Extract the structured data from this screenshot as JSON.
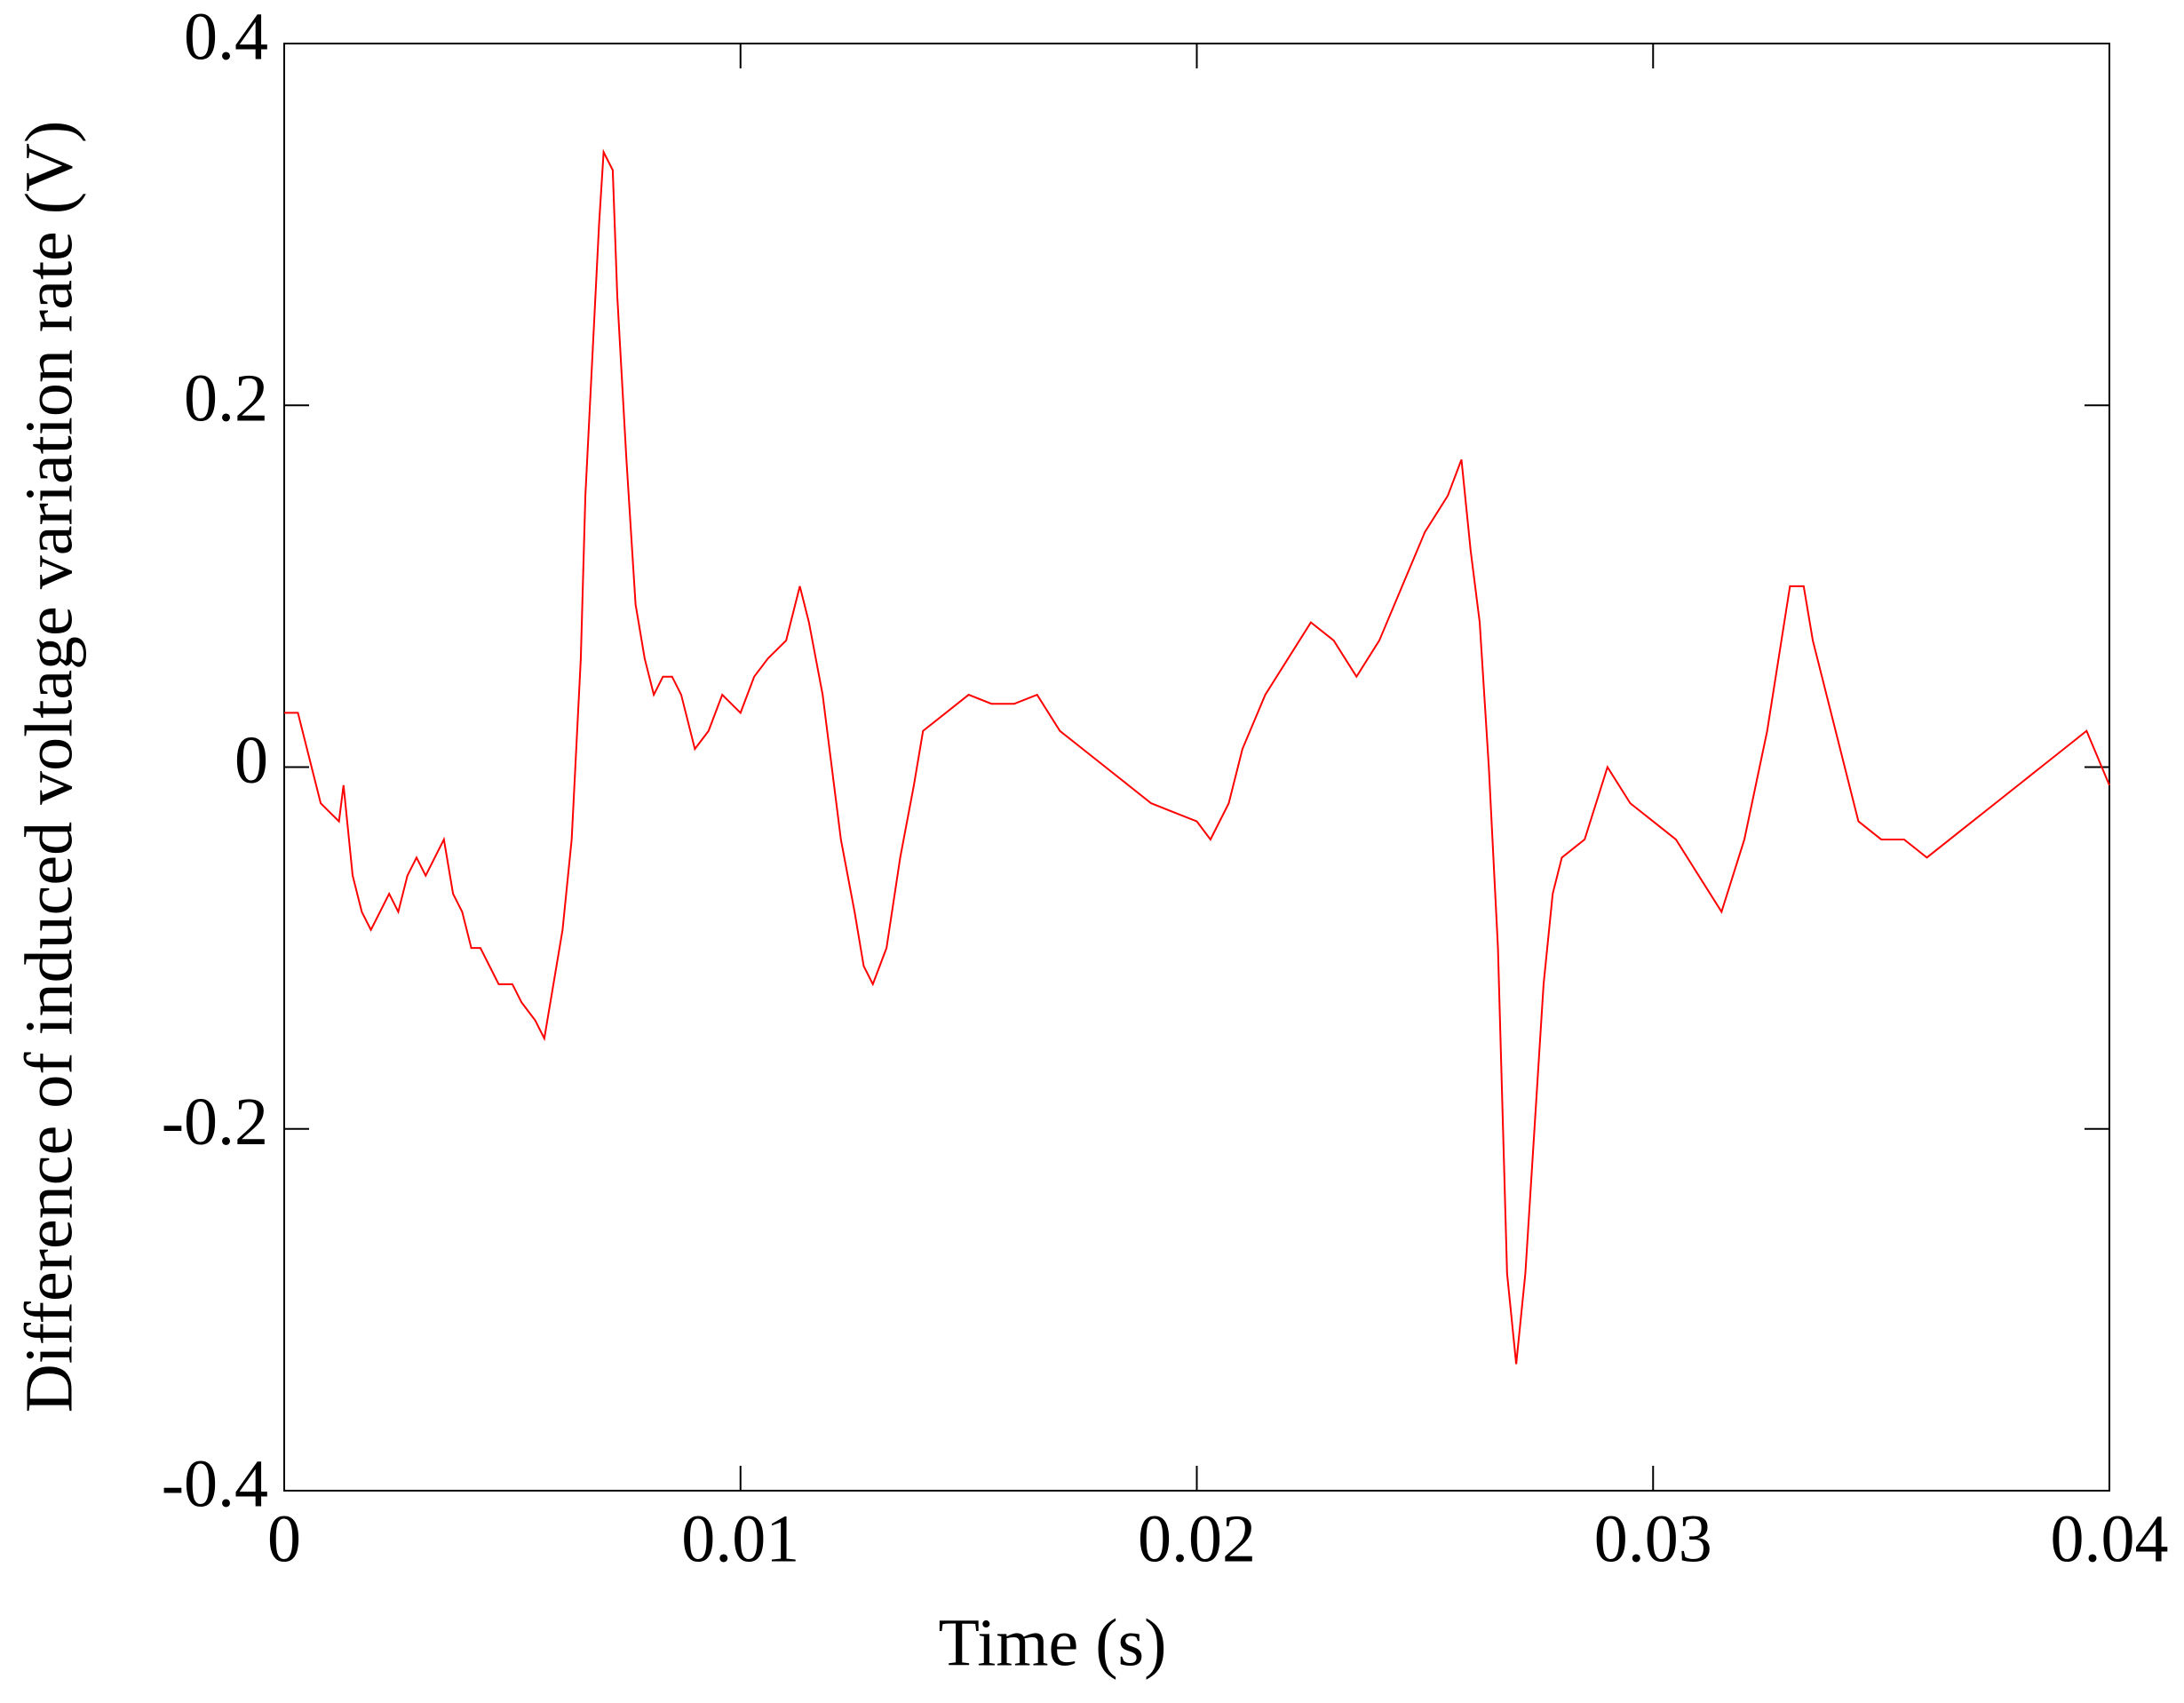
{
  "chart_data": {
    "type": "line",
    "x_label": "Time (s)",
    "y_label": "Difference of induced voltage variation rate (V)",
    "xlim": [
      0,
      0.04
    ],
    "xticks": [
      0,
      0.01,
      0.02,
      0.03,
      0.04
    ],
    "ylim": [
      -0.4,
      0.4
    ],
    "yticks": [
      -0.4,
      -0.2,
      0,
      0.2,
      0.4
    ],
    "grid": false,
    "series": [
      {
        "color": "#ff0000",
        "x": [
          0,
          0.0003,
          0.0005,
          0.0008,
          0.001,
          0.0012,
          0.0013,
          0.0015,
          0.0017,
          0.0019,
          0.0021,
          0.0023,
          0.0025,
          0.0027,
          0.0029,
          0.0031,
          0.0033,
          0.0035,
          0.0037,
          0.0039,
          0.0041,
          0.0043,
          0.0045,
          0.0047,
          0.005,
          0.0052,
          0.0055,
          0.0057,
          0.0059,
          0.0061,
          0.0063,
          0.0065,
          0.0066,
          0.0068,
          0.0069,
          0.007,
          0.0072,
          0.0073,
          0.0075,
          0.0077,
          0.0079,
          0.0081,
          0.0083,
          0.0085,
          0.0087,
          0.009,
          0.0093,
          0.0096,
          0.01,
          0.0103,
          0.0106,
          0.011,
          0.0113,
          0.0115,
          0.0118,
          0.012,
          0.0122,
          0.0125,
          0.0127,
          0.0129,
          0.0132,
          0.0135,
          0.0138,
          0.014,
          0.0145,
          0.015,
          0.0155,
          0.016,
          0.0165,
          0.017,
          0.0175,
          0.018,
          0.0185,
          0.019,
          0.0195,
          0.02,
          0.0203,
          0.0207,
          0.021,
          0.0215,
          0.022,
          0.0225,
          0.023,
          0.0235,
          0.024,
          0.0245,
          0.025,
          0.0255,
          0.0258,
          0.026,
          0.0262,
          0.0264,
          0.0266,
          0.0268,
          0.027,
          0.0272,
          0.0274,
          0.0276,
          0.0278,
          0.028,
          0.0285,
          0.029,
          0.0295,
          0.03,
          0.0305,
          0.031,
          0.0315,
          0.032,
          0.0325,
          0.033,
          0.0333,
          0.0335,
          0.034,
          0.0345,
          0.035,
          0.0355,
          0.036,
          0.0365,
          0.037,
          0.0375,
          0.038,
          0.0385,
          0.039,
          0.0395,
          0.04
        ],
        "values": [
          0.03,
          0.03,
          0.01,
          -0.02,
          -0.025,
          -0.03,
          -0.01,
          -0.06,
          -0.08,
          -0.09,
          -0.08,
          -0.07,
          -0.08,
          -0.06,
          -0.05,
          -0.06,
          -0.05,
          -0.04,
          -0.07,
          -0.08,
          -0.1,
          -0.1,
          -0.11,
          -0.12,
          -0.12,
          -0.13,
          -0.14,
          -0.15,
          -0.12,
          -0.09,
          -0.04,
          0.06,
          0.15,
          0.25,
          0.3,
          0.34,
          0.33,
          0.26,
          0.17,
          0.09,
          0.06,
          0.04,
          0.05,
          0.05,
          0.04,
          0.01,
          0.02,
          0.04,
          0.03,
          0.05,
          0.06,
          0.07,
          0.1,
          0.08,
          0.04,
          0.0,
          -0.04,
          -0.08,
          -0.11,
          -0.12,
          -0.1,
          -0.05,
          -0.01,
          0.02,
          0.03,
          0.04,
          0.035,
          0.035,
          0.04,
          0.02,
          0.01,
          0.0,
          -0.01,
          -0.02,
          -0.025,
          -0.03,
          -0.04,
          -0.02,
          0.01,
          0.04,
          0.06,
          0.08,
          0.07,
          0.05,
          0.07,
          0.1,
          0.13,
          0.15,
          0.17,
          0.12,
          0.08,
          0.0,
          -0.1,
          -0.28,
          -0.33,
          -0.28,
          -0.2,
          -0.12,
          -0.07,
          -0.05,
          -0.04,
          0.0,
          -0.02,
          -0.03,
          -0.04,
          -0.06,
          -0.08,
          -0.04,
          0.02,
          0.1,
          0.1,
          0.07,
          0.02,
          -0.03,
          -0.04,
          -0.04,
          -0.05,
          -0.04,
          -0.03,
          -0.02,
          -0.01,
          0.0,
          0.01,
          0.02,
          -0.01
        ]
      }
    ]
  }
}
